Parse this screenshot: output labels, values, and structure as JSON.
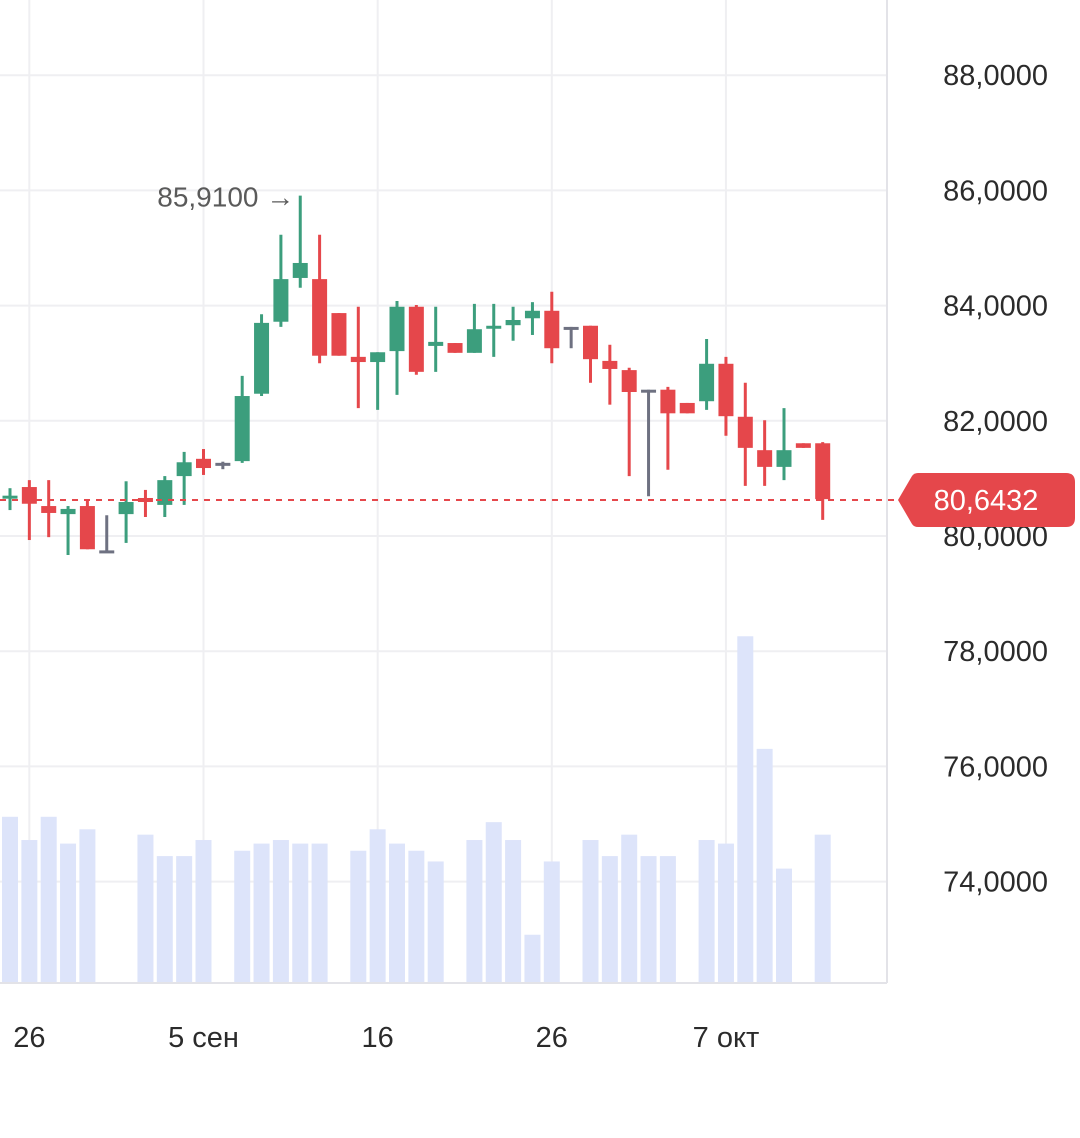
{
  "chart_data": {
    "type": "candlestick",
    "title": "",
    "y_ticks": [
      "88,0000",
      "86,0000",
      "84,0000",
      "82,0000",
      "80,0000",
      "78,0000",
      "76,0000",
      "74,0000"
    ],
    "y_tick_values": [
      88,
      86,
      84,
      82,
      80,
      78,
      76,
      74
    ],
    "ylim": [
      72.2,
      89.3
    ],
    "x_labels": [
      {
        "index": 1,
        "label": "26"
      },
      {
        "index": 10,
        "label": "5 сен"
      },
      {
        "index": 19,
        "label": "16"
      },
      {
        "index": 28,
        "label": "26"
      },
      {
        "index": 37,
        "label": "7 окт"
      }
    ],
    "candles": [
      {
        "o": 80.68,
        "c": 80.7,
        "h": 80.83,
        "l": 80.45
      },
      {
        "o": 80.85,
        "c": 80.56,
        "h": 80.97,
        "l": 79.93
      },
      {
        "o": 80.52,
        "c": 80.4,
        "h": 80.97,
        "l": 79.98
      },
      {
        "o": 80.38,
        "c": 80.47,
        "h": 80.52,
        "l": 79.67
      },
      {
        "o": 80.52,
        "c": 79.77,
        "h": 80.62,
        "l": 79.77
      },
      {
        "o": 79.75,
        "c": 79.75,
        "h": 80.36,
        "l": 79.74
      },
      {
        "o": 80.38,
        "c": 80.59,
        "h": 80.95,
        "l": 79.88
      },
      {
        "o": 80.66,
        "c": 80.59,
        "h": 80.8,
        "l": 80.33
      },
      {
        "o": 80.54,
        "c": 80.97,
        "h": 81.04,
        "l": 80.33
      },
      {
        "o": 81.04,
        "c": 81.28,
        "h": 81.46,
        "l": 80.54
      },
      {
        "o": 81.34,
        "c": 81.18,
        "h": 81.51,
        "l": 81.06
      },
      {
        "o": 81.27,
        "c": 81.27,
        "h": 81.29,
        "l": 81.16
      },
      {
        "o": 81.3,
        "c": 82.43,
        "h": 82.78,
        "l": 81.27
      },
      {
        "o": 82.47,
        "c": 83.7,
        "h": 83.85,
        "l": 82.43
      },
      {
        "o": 83.72,
        "c": 84.46,
        "h": 85.23,
        "l": 83.63
      },
      {
        "o": 84.48,
        "c": 84.74,
        "h": 85.91,
        "l": 84.31
      },
      {
        "o": 84.46,
        "c": 83.13,
        "h": 85.23,
        "l": 83.0
      },
      {
        "o": 83.87,
        "c": 83.13,
        "h": 83.87,
        "l": 83.13
      },
      {
        "o": 83.11,
        "c": 83.02,
        "h": 83.98,
        "l": 82.22
      },
      {
        "o": 83.02,
        "c": 83.19,
        "h": 83.19,
        "l": 82.19
      },
      {
        "o": 83.21,
        "c": 83.98,
        "h": 84.08,
        "l": 82.45
      },
      {
        "o": 83.98,
        "c": 82.85,
        "h": 84.01,
        "l": 82.8
      },
      {
        "o": 83.3,
        "c": 83.37,
        "h": 83.98,
        "l": 82.85
      },
      {
        "o": 83.35,
        "c": 83.18,
        "h": 83.35,
        "l": 83.18
      },
      {
        "o": 83.18,
        "c": 83.59,
        "h": 84.03,
        "l": 83.18
      },
      {
        "o": 83.61,
        "c": 83.65,
        "h": 84.03,
        "l": 83.11
      },
      {
        "o": 83.66,
        "c": 83.75,
        "h": 83.98,
        "l": 83.39
      },
      {
        "o": 83.78,
        "c": 83.91,
        "h": 84.06,
        "l": 83.49
      },
      {
        "o": 83.91,
        "c": 83.26,
        "h": 84.24,
        "l": 83.0
      },
      {
        "o": 83.63,
        "c": 83.63,
        "h": 83.63,
        "l": 83.26
      },
      {
        "o": 83.65,
        "c": 83.07,
        "h": 83.65,
        "l": 82.66
      },
      {
        "o": 83.04,
        "c": 82.9,
        "h": 83.32,
        "l": 82.28
      },
      {
        "o": 82.88,
        "c": 82.5,
        "h": 82.92,
        "l": 81.04
      },
      {
        "o": 82.54,
        "c": 82.54,
        "h": 82.54,
        "l": 80.69
      },
      {
        "o": 82.54,
        "c": 82.13,
        "h": 82.59,
        "l": 81.15
      },
      {
        "o": 82.31,
        "c": 82.13,
        "h": 82.31,
        "l": 82.13
      },
      {
        "o": 82.34,
        "c": 82.99,
        "h": 83.42,
        "l": 82.19
      },
      {
        "o": 82.99,
        "c": 82.08,
        "h": 83.11,
        "l": 81.74
      },
      {
        "o": 82.07,
        "c": 81.53,
        "h": 82.66,
        "l": 80.87
      },
      {
        "o": 81.49,
        "c": 81.2,
        "h": 82.01,
        "l": 80.87
      },
      {
        "o": 81.2,
        "c": 81.49,
        "h": 82.22,
        "l": 80.97
      },
      {
        "o": 81.61,
        "c": 81.53,
        "h": 81.61,
        "l": 81.53
      },
      {
        "o": 81.61,
        "c": 80.64,
        "h": 81.63,
        "l": 80.28
      }
    ],
    "volume": [
      93,
      80,
      93,
      78,
      86,
      null,
      null,
      83,
      71,
      71,
      80,
      null,
      74,
      78,
      80,
      78,
      78,
      null,
      74,
      86,
      78,
      74,
      68,
      null,
      80,
      90,
      80,
      27,
      68,
      null,
      80,
      71,
      83,
      71,
      71,
      null,
      80,
      78,
      194,
      131,
      64,
      null,
      83
    ],
    "volume_max": 330,
    "max_annotation": {
      "index": 15,
      "value": 85.91,
      "label": "85,9100 →"
    },
    "current_price": {
      "value": 80.6432,
      "label": "80,6432"
    },
    "colors": {
      "up": "#3c9e7d",
      "down": "#e5474b",
      "flat": "#6e7181",
      "volume": "#dde4fa",
      "grid": "#efeff2"
    }
  }
}
